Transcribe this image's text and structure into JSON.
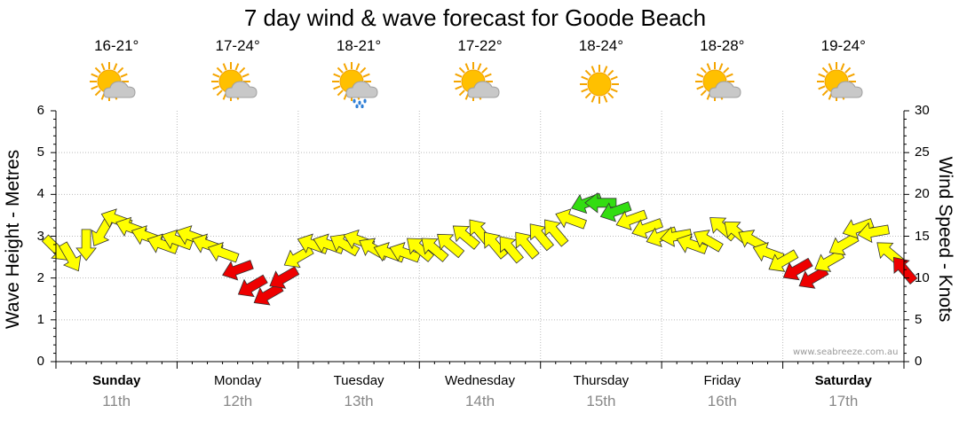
{
  "title": "7 day wind & wave forecast for Goode Beach",
  "days": [
    {
      "name": "Sunday",
      "date": "11th",
      "temp": "16-21°",
      "icon": "partly-cloudy-icon",
      "bold": true
    },
    {
      "name": "Monday",
      "date": "12th",
      "temp": "17-24°",
      "icon": "partly-cloudy-icon",
      "bold": false
    },
    {
      "name": "Tuesday",
      "date": "13th",
      "temp": "18-21°",
      "icon": "showers-icon",
      "bold": false
    },
    {
      "name": "Wednesday",
      "date": "14th",
      "temp": "17-22°",
      "icon": "partly-cloudy-icon",
      "bold": false
    },
    {
      "name": "Thursday",
      "date": "15th",
      "temp": "18-24°",
      "icon": "sunny-icon",
      "bold": false
    },
    {
      "name": "Friday",
      "date": "16th",
      "temp": "18-28°",
      "icon": "partly-cloudy-icon",
      "bold": false
    },
    {
      "name": "Saturday",
      "date": "17th",
      "temp": "19-24°",
      "icon": "partly-cloudy-icon",
      "bold": true
    }
  ],
  "watermark": "www.seabreeze.com.au",
  "colors": {
    "low_wind": "#33dd11",
    "mid_wind": "#ffff00",
    "high_wind": "#ee0000"
  },
  "chart_data": {
    "type": "line",
    "ylabel": "Wave Height - Metres",
    "ylabel_right": "Wind Speed - Knots",
    "ylim": [
      0,
      6
    ],
    "ylim_right": [
      0,
      30
    ],
    "yticks": [
      "0",
      "1",
      "2",
      "3",
      "4",
      "5",
      "6"
    ],
    "yticks_right": [
      "0",
      "5",
      "10",
      "15",
      "20",
      "25",
      "30"
    ],
    "grid": true,
    "x_unit": "days from Sunday 00:00",
    "series": [
      {
        "encoding": "arrow chain; y = wind speed (knots, right axis); arrow points downwind; colour = wind strength",
        "x": [
          0.0,
          0.12,
          0.25,
          0.38,
          0.5,
          0.62,
          0.75,
          0.88,
          1.0,
          1.12,
          1.25,
          1.38,
          1.5,
          1.62,
          1.75,
          1.88,
          2.0,
          2.12,
          2.25,
          2.38,
          2.5,
          2.62,
          2.75,
          2.88,
          3.0,
          3.12,
          3.25,
          3.38,
          3.5,
          3.62,
          3.75,
          3.88,
          4.0,
          4.12,
          4.25,
          4.38,
          4.5,
          4.62,
          4.75,
          4.88,
          5.0,
          5.12,
          5.25,
          5.38,
          5.5,
          5.62,
          5.75,
          5.88,
          6.0,
          6.12,
          6.25,
          6.38,
          6.5,
          6.62,
          6.75,
          6.88,
          7.0
        ],
        "y": [
          13.5,
          12.5,
          14,
          15.5,
          17,
          16,
          15,
          14,
          14.5,
          15,
          14,
          13,
          11,
          9,
          8,
          10,
          12.5,
          14,
          14,
          14,
          14.5,
          13.5,
          13,
          13,
          13.5,
          13.5,
          14,
          15,
          15.5,
          14,
          13.5,
          14,
          15,
          15.5,
          17,
          19,
          19,
          18,
          17,
          16,
          15,
          15,
          14,
          14.5,
          16,
          15.5,
          14.5,
          13,
          12,
          11,
          10,
          12,
          14,
          16,
          15.5,
          13,
          11
        ],
        "direction_deg": [
          45,
          60,
          90,
          120,
          200,
          200,
          200,
          200,
          200,
          200,
          200,
          200,
          160,
          150,
          150,
          150,
          150,
          200,
          200,
          210,
          200,
          210,
          200,
          200,
          220,
          220,
          220,
          220,
          230,
          230,
          230,
          230,
          230,
          230,
          200,
          160,
          180,
          160,
          160,
          160,
          160,
          170,
          200,
          210,
          220,
          220,
          210,
          200,
          150,
          150,
          150,
          150,
          150,
          160,
          170,
          220,
          230
        ]
      }
    ]
  }
}
